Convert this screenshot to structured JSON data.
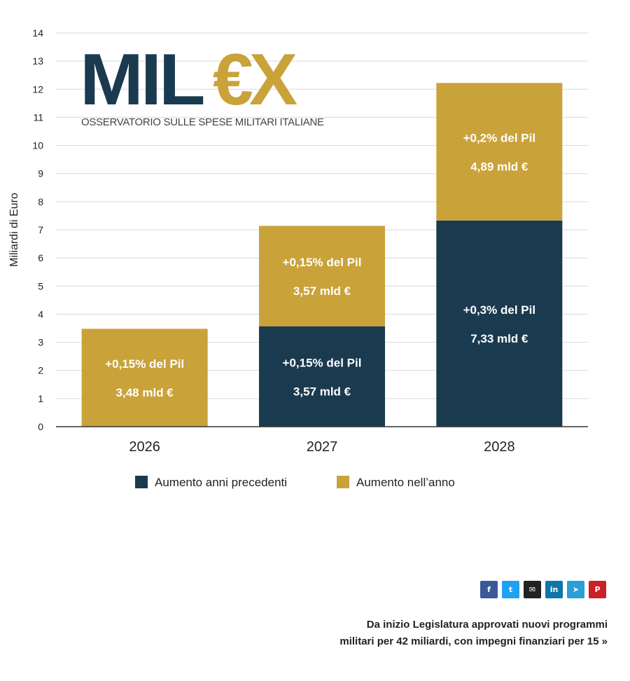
{
  "chart_data": {
    "type": "bar",
    "stacked": true,
    "categories": [
      "2026",
      "2027",
      "2028"
    ],
    "ylabel": "Miliardi di Euro",
    "ylim": [
      0,
      14
    ],
    "yticks": [
      "0",
      "1",
      "2",
      "3",
      "4",
      "5",
      "6",
      "7",
      "8",
      "9",
      "10",
      "11",
      "12",
      "13",
      "14"
    ],
    "grid": true,
    "legend_position": "bottom",
    "series": [
      {
        "name": "Aumento anni precedenti",
        "color": "#1a3a4f",
        "values": [
          0,
          3.57,
          7.33
        ],
        "labels": [
          null,
          [
            "+0,15% del Pil",
            "3,57 mld €"
          ],
          [
            "+0,3% del Pil",
            "7,33 mld €"
          ]
        ]
      },
      {
        "name": "Aumento nell’anno",
        "color": "#c9a23a",
        "values": [
          3.48,
          3.57,
          4.89
        ],
        "labels": [
          [
            "+0,15% del Pil",
            "3,48 mld €"
          ],
          [
            "+0,15% del Pil",
            "3,57 mld €"
          ],
          [
            "+0,2% del Pil",
            "4,89 mld €"
          ]
        ]
      }
    ]
  },
  "logo": {
    "mil": "MIL",
    "ex": "€X",
    "subtitle": "OSSERVATORIO SULLE SPESE MILITARI ITALIANE"
  },
  "share": [
    {
      "icon": "facebook-icon",
      "glyph": "f",
      "color": "#3b5998"
    },
    {
      "icon": "twitter-icon",
      "glyph": "t",
      "color": "#1da1f2"
    },
    {
      "icon": "email-icon",
      "glyph": "✉",
      "color": "#222222"
    },
    {
      "icon": "linkedin-icon",
      "glyph": "in",
      "color": "#0e76a8"
    },
    {
      "icon": "telegram-icon",
      "glyph": "➤",
      "color": "#2a9fd8"
    },
    {
      "icon": "pinterest-icon",
      "glyph": "P",
      "color": "#cb2027"
    }
  ],
  "footer": {
    "line1": "Da inizio Legislatura approvati nuovi programmi",
    "line2": "militari per 42 miliardi, con impegni finanziari per 15 »"
  }
}
